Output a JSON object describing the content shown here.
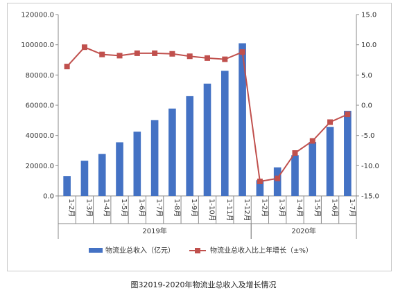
{
  "chart_data": {
    "type": "bar+line",
    "categories": [
      "1-2月",
      "1-3月",
      "1-4月",
      "1-5月",
      "1-6月",
      "1-7月",
      "1-8月",
      "1-9月",
      "1-10月",
      "1-11月",
      "1-12月",
      "1-2月",
      "1-3月",
      "1-4月",
      "1-5月",
      "1-6月",
      "1-7月"
    ],
    "groups": [
      {
        "label": "2019年",
        "start": 0,
        "end": 10
      },
      {
        "label": "2020年",
        "start": 11,
        "end": 16
      }
    ],
    "series": [
      {
        "name": "物流业总收入（亿元）",
        "type": "bar",
        "axis": "left",
        "color": "#4472c4",
        "values": [
          13200,
          23300,
          27800,
          35500,
          42500,
          50200,
          57800,
          66000,
          74300,
          82800,
          101000,
          10400,
          18900,
          26900,
          35700,
          45700,
          56300
        ]
      },
      {
        "name": "物流业总收入比上年增长（±%）",
        "type": "line",
        "axis": "right",
        "color": "#c0504d",
        "values": [
          6.4,
          9.6,
          8.4,
          8.2,
          8.6,
          8.6,
          8.5,
          8.1,
          7.8,
          7.6,
          8.8,
          -12.6,
          -12.1,
          -7.9,
          -5.9,
          -2.8,
          -1.5
        ]
      }
    ],
    "left_axis": {
      "ylim": [
        0,
        120000
      ],
      "ticks": [
        "0.0",
        "20000.0",
        "40000.0",
        "60000.0",
        "80000.0",
        "100000.0",
        "120000.0"
      ]
    },
    "right_axis": {
      "ylim": [
        -15,
        15
      ],
      "ticks": [
        "-15.0",
        "-10.0",
        "-5.0",
        "0.0",
        "5.0",
        "10.0",
        "15.0"
      ]
    },
    "legend_position": "bottom"
  },
  "caption": "图32019-2020年物流业总收入及增长情况"
}
